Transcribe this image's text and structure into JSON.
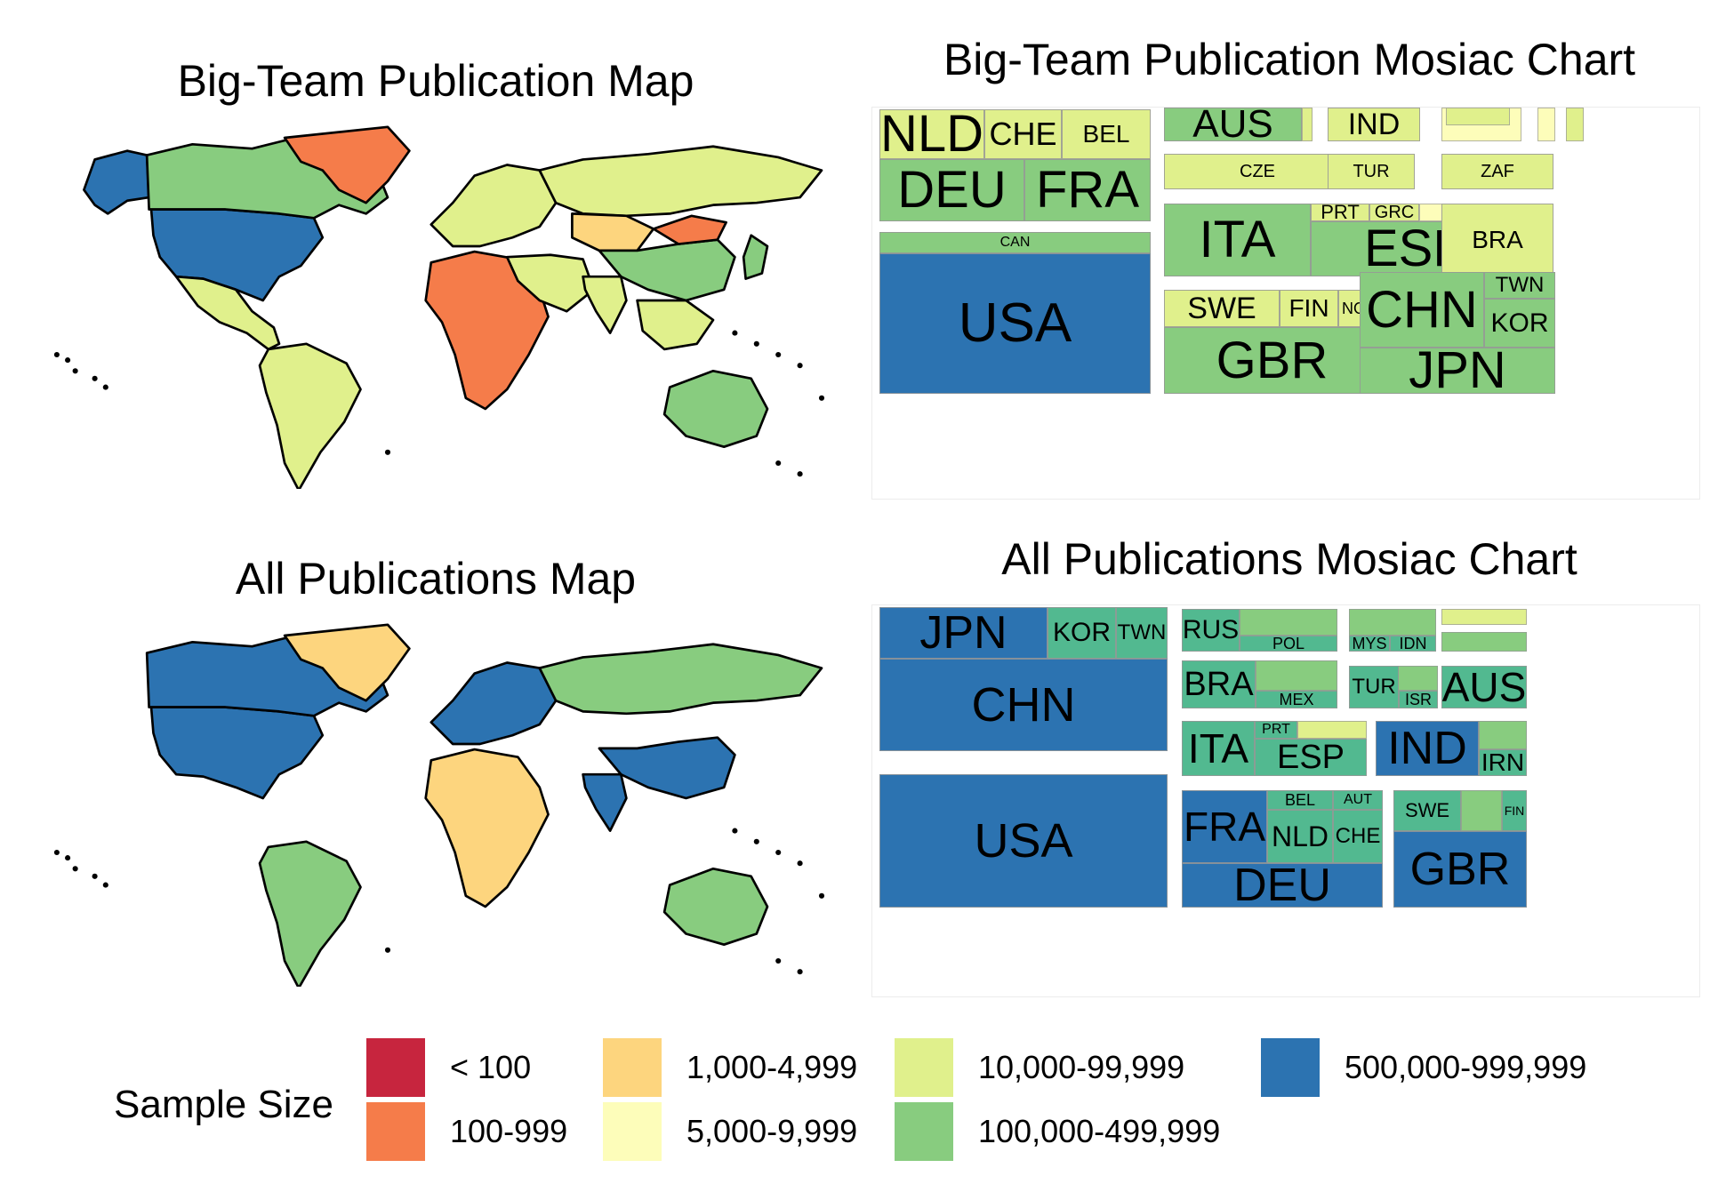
{
  "colors": {
    "lt100": "#c7253e",
    "r100_999": "#f57c4a",
    "r1000_4999": "#fdd57e",
    "r5000_9999": "#fdfdba",
    "r10000_99999": "#e0f08c",
    "r100000_499999": "#88cc7f",
    "r500000_999999": "#2c73b1",
    "teal": "#52b990",
    "ocean": "#ffffff"
  },
  "panels": {
    "bigteam_map_title": "Big-Team Publication Map",
    "bigteam_mosaic_title": "Big-Team Publication Mosiac Chart",
    "all_map_title": "All Publications Map",
    "all_mosaic_title": "All Publications Mosiac Chart"
  },
  "legend": {
    "title": "Sample Size",
    "items": [
      {
        "label": "< 100",
        "color": "#c7253e"
      },
      {
        "label": "100-999",
        "color": "#f57c4a"
      },
      {
        "label": "1,000-4,999",
        "color": "#fdd57e"
      },
      {
        "label": "5,000-9,999",
        "color": "#fdfdba"
      },
      {
        "label": "10,000-99,999",
        "color": "#e0f08c"
      },
      {
        "label": "100,000-499,999",
        "color": "#88cc7f"
      },
      {
        "label": "500,000-999,999",
        "color": "#2c73b1"
      }
    ]
  },
  "chart_data": [
    {
      "type": "map",
      "title": "Big-Team Publication Map",
      "legend_title": "Sample Size",
      "regions": [
        {
          "name": "North America (USA)",
          "category": "500,000-999,999"
        },
        {
          "name": "Alaska",
          "category": "500,000-999,999"
        },
        {
          "name": "Canada",
          "category": "100,000-499,999"
        },
        {
          "name": "Greenland",
          "category": "100-999"
        },
        {
          "name": "Central America",
          "category": "10,000-99,999"
        },
        {
          "name": "South America",
          "category": "10,000-99,999"
        },
        {
          "name": "Europe",
          "category": "10,000-99,999"
        },
        {
          "name": "Russia",
          "category": "10,000-99,999"
        },
        {
          "name": "Africa",
          "category": "100-999"
        },
        {
          "name": "Middle East",
          "category": "10,000-99,999"
        },
        {
          "name": "Central Asia",
          "category": "1,000-4,999"
        },
        {
          "name": "China",
          "category": "100,000-499,999"
        },
        {
          "name": "Mongolia",
          "category": "100-999"
        },
        {
          "name": "India",
          "category": "10,000-99,999"
        },
        {
          "name": "Southeast Asia",
          "category": "10,000-99,999"
        },
        {
          "name": "Japan",
          "category": "100,000-499,999"
        },
        {
          "name": "Australia",
          "category": "100,000-499,999"
        }
      ]
    },
    {
      "type": "treemap",
      "title": "Big-Team Publication Mosiac Chart",
      "tiles": [
        {
          "label": "NLD",
          "category": "10,000-99,999",
          "size": 48
        },
        {
          "label": "CHE",
          "category": "10,000-99,999",
          "size": 34
        },
        {
          "label": "BEL",
          "category": "10,000-99,999",
          "size": 26
        },
        {
          "label": "DEU",
          "category": "100,000-499,999",
          "size": 56
        },
        {
          "label": "FRA",
          "category": "100,000-499,999",
          "size": 56
        },
        {
          "label": "CAN",
          "category": "100,000-499,999",
          "size": 14
        },
        {
          "label": "USA",
          "category": "500,000-999,999",
          "size": 58
        },
        {
          "label": "AUS",
          "category": "100,000-499,999",
          "size": 38
        },
        {
          "label": "IND",
          "category": "10,000-99,999",
          "size": 32
        },
        {
          "label": "CZE",
          "category": "10,000-99,999",
          "size": 16
        },
        {
          "label": "TUR",
          "category": "10,000-99,999",
          "size": 16
        },
        {
          "label": "ZAF",
          "category": "10,000-99,999",
          "size": 16
        },
        {
          "label": "ITA",
          "category": "100,000-499,999",
          "size": 46
        },
        {
          "label": "PRT",
          "category": "10,000-99,999",
          "size": 20
        },
        {
          "label": "GRC",
          "category": "10,000-99,999",
          "size": 18
        },
        {
          "label": "ESP",
          "category": "100,000-499,999",
          "size": 52
        },
        {
          "label": "BRA",
          "category": "10,000-99,999",
          "size": 28
        },
        {
          "label": "SWE",
          "category": "10,000-99,999",
          "size": 32
        },
        {
          "label": "FIN",
          "category": "10,000-99,999",
          "size": 26
        },
        {
          "label": "NOR",
          "category": "10,000-99,999",
          "size": 18
        },
        {
          "label": "GBR",
          "category": "100,000-499,999",
          "size": 56
        },
        {
          "label": "CHN",
          "category": "100,000-499,999",
          "size": 56
        },
        {
          "label": "TWN",
          "category": "100,000-499,999",
          "size": 24
        },
        {
          "label": "KOR",
          "category": "100,000-499,999",
          "size": 30
        },
        {
          "label": "JPN",
          "category": "100,000-499,999",
          "size": 56
        }
      ]
    },
    {
      "type": "map",
      "title": "All Publications Map",
      "legend_title": "Sample Size",
      "regions": [
        {
          "name": "North America (USA)",
          "category": "500,000-999,999"
        },
        {
          "name": "Canada",
          "category": "500,000-999,999"
        },
        {
          "name": "Greenland",
          "category": "1,000-4,999"
        },
        {
          "name": "South America",
          "category": "100,000-499,999"
        },
        {
          "name": "Europe",
          "category": "500,000-999,999"
        },
        {
          "name": "Russia",
          "category": "100,000-499,999"
        },
        {
          "name": "Africa",
          "category": "1,000-4,999"
        },
        {
          "name": "China",
          "category": "500,000-999,999"
        },
        {
          "name": "India",
          "category": "500,000-999,999"
        },
        {
          "name": "Australia",
          "category": "100,000-499,999"
        }
      ]
    },
    {
      "type": "treemap",
      "title": "All Publications Mosiac Chart",
      "tiles": [
        {
          "label": "JPN",
          "category": "500,000-999,999",
          "size": 56
        },
        {
          "label": "KOR",
          "category": "100,000-499,999",
          "size": 32
        },
        {
          "label": "TWN",
          "category": "100,000-499,999",
          "size": 24
        },
        {
          "label": "CHN",
          "category": "500,000-999,999",
          "size": 56
        },
        {
          "label": "USA",
          "category": "500,000-999,999",
          "size": 56
        },
        {
          "label": "RUS",
          "category": "100,000-499,999",
          "size": 30
        },
        {
          "label": "POL",
          "category": "100,000-499,999",
          "size": 18
        },
        {
          "label": "MYS",
          "category": "100,000-499,999",
          "size": 16
        },
        {
          "label": "IDN",
          "category": "100,000-499,999",
          "size": 16
        },
        {
          "label": "BRA",
          "category": "100,000-499,999",
          "size": 38
        },
        {
          "label": "MEX",
          "category": "100,000-499,999",
          "size": 18
        },
        {
          "label": "TUR",
          "category": "100,000-499,999",
          "size": 22
        },
        {
          "label": "ISR",
          "category": "100,000-499,999",
          "size": 16
        },
        {
          "label": "AUS",
          "category": "100,000-499,999",
          "size": 46
        },
        {
          "label": "ITA",
          "category": "100,000-499,999",
          "size": 46
        },
        {
          "label": "PRT",
          "category": "100,000-499,999",
          "size": 16
        },
        {
          "label": "ESP",
          "category": "100,000-499,999",
          "size": 38
        },
        {
          "label": "IND",
          "category": "500,000-999,999",
          "size": 56
        },
        {
          "label": "IRN",
          "category": "100,000-499,999",
          "size": 28
        },
        {
          "label": "FRA",
          "category": "500,000-999,999",
          "size": 46
        },
        {
          "label": "BEL",
          "category": "100,000-499,999",
          "size": 18
        },
        {
          "label": "AUT",
          "category": "100,000-499,999",
          "size": 16
        },
        {
          "label": "NLD",
          "category": "100,000-499,999",
          "size": 32
        },
        {
          "label": "CHE",
          "category": "100,000-499,999",
          "size": 24
        },
        {
          "label": "DEU",
          "category": "500,000-999,999",
          "size": 56
        },
        {
          "label": "SWE",
          "category": "100,000-499,999",
          "size": 22
        },
        {
          "label": "FIN",
          "category": "100,000-499,999",
          "size": 16
        },
        {
          "label": "GBR",
          "category": "500,000-999,999",
          "size": 56
        }
      ]
    }
  ]
}
